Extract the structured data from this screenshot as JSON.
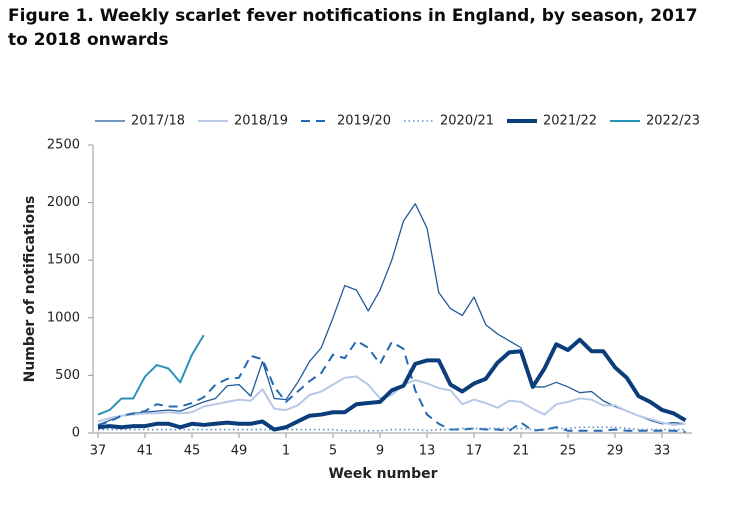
{
  "chart_data": {
    "type": "line",
    "title": "Figure 1. Weekly scarlet fever notifications in England, by season, 2017 to 2018 onwards",
    "y_label": "Number of notifications",
    "x_label": "Week number",
    "categories": [
      37,
      null,
      null,
      null,
      41,
      null,
      null,
      null,
      45,
      null,
      null,
      null,
      49,
      null,
      null,
      null,
      1,
      null,
      null,
      null,
      5,
      null,
      null,
      null,
      9,
      null,
      null,
      null,
      13,
      null,
      null,
      null,
      17,
      null,
      null,
      null,
      21,
      null,
      null,
      null,
      25,
      null,
      null,
      null,
      29,
      null,
      null,
      null,
      33,
      null,
      null
    ],
    "ylim": [
      0,
      2500
    ],
    "yticks": [
      0,
      500,
      1000,
      1500,
      2000,
      2500
    ],
    "grid": false,
    "legend": "top",
    "series": [
      {
        "name": "2017/18",
        "color": "#1f5b99",
        "width": 1.3,
        "dash": "none",
        "values": [
          70,
          110,
          150,
          170,
          180,
          190,
          200,
          190,
          230,
          270,
          300,
          410,
          420,
          320,
          620,
          300,
          290,
          440,
          620,
          740,
          1000,
          1280,
          1240,
          1060,
          1240,
          1500,
          1840,
          1990,
          1780,
          1220,
          1080,
          1020,
          1180,
          940,
          860,
          800,
          740,
          400,
          400,
          440,
          400,
          350,
          360,
          280,
          230,
          190,
          150,
          110,
          80,
          90,
          80
        ]
      },
      {
        "name": "2018/19",
        "color": "#b8c8e6",
        "width": 2,
        "dash": "none",
        "values": [
          100,
          130,
          150,
          160,
          170,
          170,
          180,
          170,
          180,
          230,
          250,
          270,
          290,
          280,
          380,
          210,
          200,
          240,
          330,
          360,
          420,
          480,
          490,
          420,
          300,
          330,
          420,
          460,
          430,
          390,
          370,
          250,
          290,
          260,
          220,
          280,
          270,
          210,
          160,
          250,
          270,
          300,
          290,
          240,
          240,
          190,
          150,
          120,
          90,
          70,
          80
        ]
      },
      {
        "name": "2019/20",
        "color": "#2469b0",
        "width": 2,
        "dash": "9 6",
        "values": [
          70,
          100,
          150,
          170,
          190,
          250,
          230,
          230,
          260,
          310,
          420,
          470,
          480,
          670,
          640,
          400,
          270,
          360,
          450,
          520,
          680,
          650,
          800,
          740,
          600,
          790,
          730,
          370,
          160,
          80,
          30,
          30,
          40,
          30,
          30,
          20,
          90,
          20,
          30,
          50,
          20,
          20,
          20,
          20,
          30,
          20,
          20,
          20,
          20,
          20,
          10
        ]
      },
      {
        "name": "2020/21",
        "color": "#5b8fc9",
        "width": 1.6,
        "dash": "1.5 3",
        "values": [
          30,
          30,
          30,
          30,
          30,
          30,
          30,
          30,
          30,
          30,
          30,
          30,
          30,
          30,
          30,
          30,
          30,
          30,
          30,
          30,
          30,
          20,
          20,
          20,
          20,
          30,
          30,
          30,
          20,
          30,
          30,
          40,
          40,
          40,
          40,
          40,
          40,
          30,
          30,
          40,
          40,
          50,
          50,
          50,
          50,
          40,
          30,
          30,
          30,
          30,
          30
        ]
      },
      {
        "name": "2021/22",
        "color": "#0b3d7a",
        "width": 4,
        "dash": "none",
        "values": [
          50,
          60,
          50,
          60,
          60,
          80,
          80,
          50,
          80,
          70,
          80,
          90,
          80,
          80,
          100,
          30,
          50,
          100,
          150,
          160,
          180,
          180,
          250,
          260,
          270,
          370,
          410,
          600,
          630,
          630,
          420,
          360,
          430,
          470,
          610,
          700,
          710,
          400,
          560,
          770,
          720,
          810,
          710,
          710,
          570,
          480,
          320,
          270,
          200,
          170,
          110
        ]
      },
      {
        "name": "2022/23",
        "color": "#2a93b8",
        "width": 2,
        "dash": "none",
        "values": [
          160,
          200,
          300,
          300,
          490,
          590,
          560,
          440,
          680,
          850,
          null,
          null,
          null,
          null,
          null,
          null,
          null,
          null,
          null,
          null,
          null,
          null,
          null,
          null,
          null,
          null,
          null,
          null,
          null,
          null,
          null,
          null,
          null,
          null,
          null,
          null,
          null,
          null,
          null,
          null,
          null,
          null,
          null,
          null,
          null,
          null,
          null,
          null,
          null,
          null,
          null
        ]
      }
    ]
  }
}
